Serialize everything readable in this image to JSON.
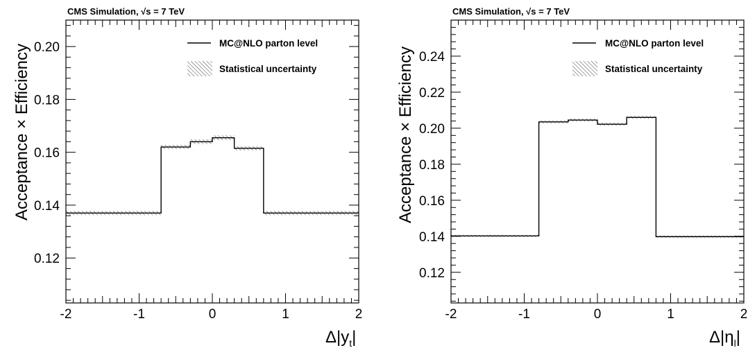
{
  "chart_data": [
    {
      "type": "line",
      "title": "CMS Simulation, √s = 7 TeV",
      "ylabel": "Acceptance × Efficiency",
      "xlabel": "Δ|y_t|",
      "xlim": [
        -2,
        2
      ],
      "ylim": [
        0.103,
        0.21
      ],
      "yticks": [
        "0.12",
        "0.14",
        "0.16",
        "0.18",
        "0.20"
      ],
      "xticks": [
        "-2",
        "-1",
        "0",
        "1",
        "2"
      ],
      "legend": [
        "MC@NLO parton level",
        "Statistical uncertainty"
      ],
      "legend_position": "top-right",
      "bin_edges": [
        -2,
        -0.7,
        -0.3,
        0,
        0.3,
        0.7,
        2
      ],
      "values": [
        0.137,
        0.162,
        0.164,
        0.1655,
        0.1615,
        0.137
      ],
      "uncertainty": [
        0.0008,
        0.0008,
        0.0009,
        0.0009,
        0.0008,
        0.0008
      ]
    },
    {
      "type": "line",
      "title": "CMS Simulation, √s = 7 TeV",
      "ylabel": "Acceptance × Efficiency",
      "xlabel": "Δ|η_l|",
      "xlim": [
        -2,
        2
      ],
      "ylim": [
        0.103,
        0.26
      ],
      "yticks": [
        "0.12",
        "0.14",
        "0.16",
        "0.18",
        "0.20",
        "0.22",
        "0.24"
      ],
      "xticks": [
        "-2",
        "-1",
        "0",
        "1",
        "2"
      ],
      "legend": [
        "MC@NLO parton level",
        "Statistical uncertainty"
      ],
      "legend_position": "top-right",
      "bin_edges": [
        -2,
        -0.8,
        -0.4,
        0,
        0.4,
        0.8,
        2
      ],
      "values": [
        0.1402,
        0.2035,
        0.2045,
        0.2022,
        0.206,
        0.1398
      ],
      "uncertainty": [
        0.0006,
        0.0008,
        0.0008,
        0.0008,
        0.0008,
        0.0006
      ]
    }
  ]
}
